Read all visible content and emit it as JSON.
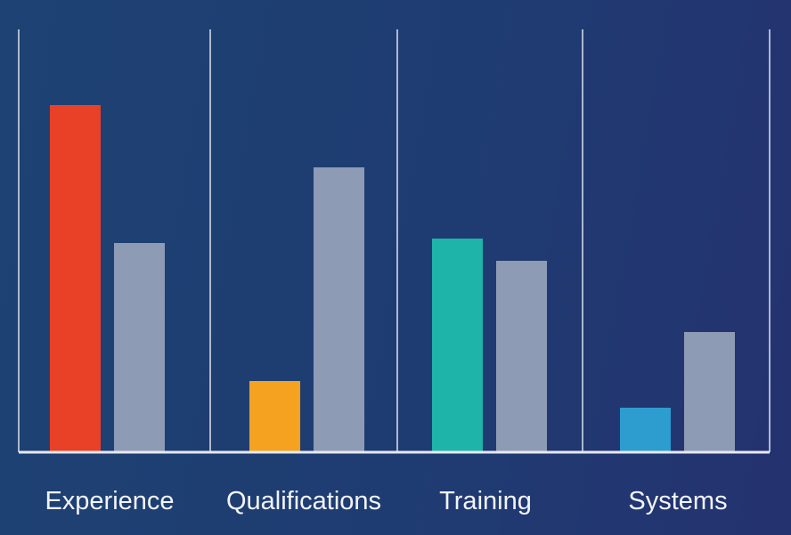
{
  "chart_data": {
    "type": "bar",
    "title": "",
    "xlabel": "",
    "ylabel": "",
    "categories": [
      "Experience",
      "Qualifications",
      "Training",
      "Systems"
    ],
    "series": [
      {
        "values": [
          78,
          16,
          48,
          10
        ],
        "colors": [
          "#e84127",
          "#f4a21f",
          "#1fb4aa",
          "#2d9dd0"
        ]
      },
      {
        "values": [
          47,
          64,
          43,
          27
        ],
        "color": "#8e9bb5"
      }
    ],
    "ylim": [
      0,
      95
    ],
    "grid": false,
    "legend": "none",
    "axis_color": "#e6e9f0",
    "divider_color": "#aeb8cc"
  }
}
